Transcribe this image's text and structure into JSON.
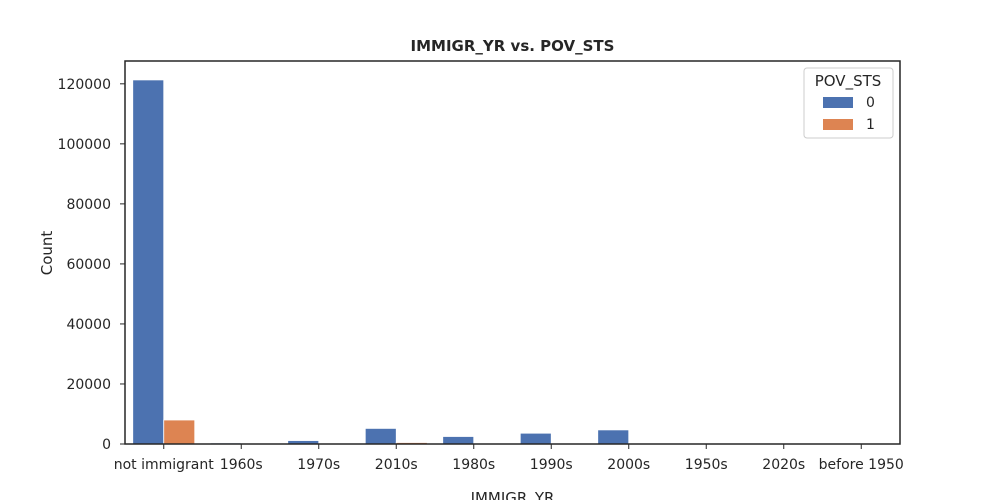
{
  "chart_data": {
    "type": "bar",
    "title": "IMMIGR_YR vs. POV_STS",
    "xlabel": "IMMIGR_YR",
    "ylabel": "Count",
    "categories": [
      "not immigrant",
      "1960s",
      "1970s",
      "2010s",
      "1980s",
      "1990s",
      "2000s",
      "1950s",
      "2020s",
      "before 1950"
    ],
    "series": [
      {
        "name": "0",
        "color": "#4c72b0",
        "values": [
          121300,
          350,
          1150,
          5200,
          2500,
          3600,
          4700,
          200,
          150,
          100
        ]
      },
      {
        "name": "1",
        "color": "#dd8452",
        "values": [
          8000,
          20,
          60,
          500,
          150,
          250,
          300,
          10,
          10,
          5
        ]
      }
    ],
    "ylim": [
      0,
      127600
    ],
    "yticks": [
      0,
      20000,
      40000,
      60000,
      80000,
      100000,
      120000
    ],
    "legend": {
      "title": "POV_STS",
      "position": "top-right"
    },
    "grid": false
  }
}
